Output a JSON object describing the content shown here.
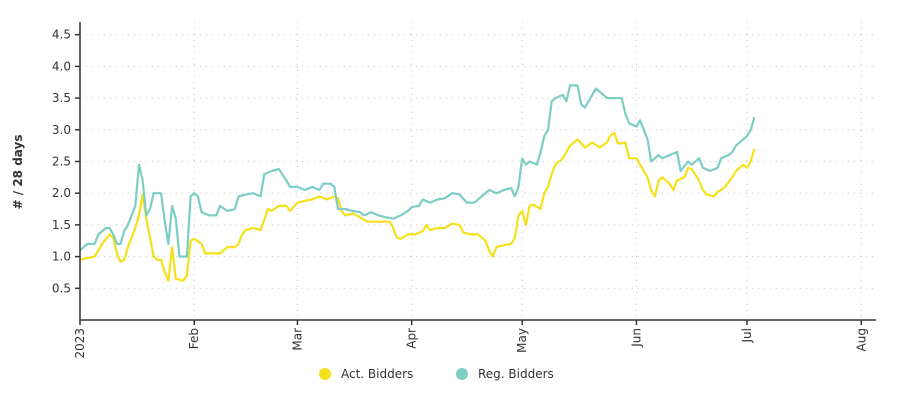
{
  "chart_data": {
    "type": "line",
    "title": "",
    "xlabel": "",
    "ylabel": "# / 28 days",
    "xlim": [
      "2023-01-01",
      "2023-08-05"
    ],
    "ylim": [
      0,
      4.7
    ],
    "y_ticks": [
      0.5,
      1.0,
      1.5,
      2.0,
      2.5,
      3.0,
      3.5,
      4.0,
      4.5
    ],
    "x_ticks": [
      {
        "date": "2023-01-01",
        "label": "2023"
      },
      {
        "date": "2023-02-01",
        "label": "Feb"
      },
      {
        "date": "2023-03-01",
        "label": "Mar"
      },
      {
        "date": "2023-04-01",
        "label": "Apr"
      },
      {
        "date": "2023-05-01",
        "label": "May"
      },
      {
        "date": "2023-06-01",
        "label": "Jun"
      },
      {
        "date": "2023-07-01",
        "label": "Jul"
      },
      {
        "date": "2023-08-01",
        "label": "Aug"
      }
    ],
    "grid": true,
    "legend_position": "bottom-center",
    "series": [
      {
        "name": "Act. Bidders",
        "color": "#f5e11b",
        "points": [
          [
            "2023-01-01",
            0.95
          ],
          [
            "2023-01-03",
            0.98
          ],
          [
            "2023-01-05",
            1.0
          ],
          [
            "2023-01-07",
            1.2
          ],
          [
            "2023-01-09",
            1.35
          ],
          [
            "2023-01-10",
            1.3
          ],
          [
            "2023-01-11",
            1.05
          ],
          [
            "2023-01-12",
            0.92
          ],
          [
            "2023-01-13",
            0.95
          ],
          [
            "2023-01-14",
            1.15
          ],
          [
            "2023-01-15",
            1.3
          ],
          [
            "2023-01-16",
            1.45
          ],
          [
            "2023-01-17",
            1.65
          ],
          [
            "2023-01-18",
            1.98
          ],
          [
            "2023-01-19",
            1.6
          ],
          [
            "2023-01-20",
            1.3
          ],
          [
            "2023-01-21",
            1.0
          ],
          [
            "2023-01-22",
            0.95
          ],
          [
            "2023-01-23",
            0.95
          ],
          [
            "2023-01-24",
            0.75
          ],
          [
            "2023-01-25",
            0.62
          ],
          [
            "2023-01-26",
            1.15
          ],
          [
            "2023-01-27",
            0.65
          ],
          [
            "2023-01-29",
            0.62
          ],
          [
            "2023-01-30",
            0.7
          ],
          [
            "2023-01-31",
            1.25
          ],
          [
            "2023-02-01",
            1.28
          ],
          [
            "2023-02-03",
            1.2
          ],
          [
            "2023-02-04",
            1.05
          ],
          [
            "2023-02-06",
            1.05
          ],
          [
            "2023-02-08",
            1.05
          ],
          [
            "2023-02-09",
            1.1
          ],
          [
            "2023-02-10",
            1.15
          ],
          [
            "2023-02-12",
            1.15
          ],
          [
            "2023-02-13",
            1.2
          ],
          [
            "2023-02-14",
            1.35
          ],
          [
            "2023-02-15",
            1.42
          ],
          [
            "2023-02-17",
            1.45
          ],
          [
            "2023-02-19",
            1.42
          ],
          [
            "2023-02-20",
            1.58
          ],
          [
            "2023-02-21",
            1.75
          ],
          [
            "2023-02-22",
            1.72
          ],
          [
            "2023-02-24",
            1.8
          ],
          [
            "2023-02-26",
            1.8
          ],
          [
            "2023-02-27",
            1.72
          ],
          [
            "2023-03-01",
            1.85
          ],
          [
            "2023-03-03",
            1.88
          ],
          [
            "2023-03-05",
            1.9
          ],
          [
            "2023-03-07",
            1.95
          ],
          [
            "2023-03-09",
            1.9
          ],
          [
            "2023-03-11",
            1.95
          ],
          [
            "2023-03-12",
            1.92
          ],
          [
            "2023-03-13",
            1.72
          ],
          [
            "2023-03-14",
            1.65
          ],
          [
            "2023-03-16",
            1.68
          ],
          [
            "2023-03-18",
            1.62
          ],
          [
            "2023-03-20",
            1.55
          ],
          [
            "2023-03-22",
            1.55
          ],
          [
            "2023-03-24",
            1.55
          ],
          [
            "2023-03-26",
            1.55
          ],
          [
            "2023-03-27",
            1.45
          ],
          [
            "2023-03-28",
            1.3
          ],
          [
            "2023-03-29",
            1.28
          ],
          [
            "2023-03-31",
            1.35
          ],
          [
            "2023-04-02",
            1.35
          ],
          [
            "2023-04-04",
            1.4
          ],
          [
            "2023-04-05",
            1.5
          ],
          [
            "2023-04-06",
            1.42
          ],
          [
            "2023-04-08",
            1.45
          ],
          [
            "2023-04-10",
            1.45
          ],
          [
            "2023-04-12",
            1.52
          ],
          [
            "2023-04-14",
            1.5
          ],
          [
            "2023-04-15",
            1.38
          ],
          [
            "2023-04-17",
            1.35
          ],
          [
            "2023-04-19",
            1.35
          ],
          [
            "2023-04-21",
            1.25
          ],
          [
            "2023-04-22",
            1.1
          ],
          [
            "2023-04-23",
            1.0
          ],
          [
            "2023-04-24",
            1.15
          ],
          [
            "2023-04-26",
            1.18
          ],
          [
            "2023-04-28",
            1.2
          ],
          [
            "2023-04-29",
            1.3
          ],
          [
            "2023-04-30",
            1.65
          ],
          [
            "2023-05-01",
            1.72
          ],
          [
            "2023-05-02",
            1.5
          ],
          [
            "2023-05-03",
            1.8
          ],
          [
            "2023-05-04",
            1.82
          ],
          [
            "2023-05-06",
            1.75
          ],
          [
            "2023-05-07",
            2.0
          ],
          [
            "2023-05-08",
            2.1
          ],
          [
            "2023-05-09",
            2.3
          ],
          [
            "2023-05-10",
            2.45
          ],
          [
            "2023-05-12",
            2.55
          ],
          [
            "2023-05-13",
            2.65
          ],
          [
            "2023-05-14",
            2.75
          ],
          [
            "2023-05-15",
            2.8
          ],
          [
            "2023-05-16",
            2.85
          ],
          [
            "2023-05-18",
            2.72
          ],
          [
            "2023-05-20",
            2.8
          ],
          [
            "2023-05-22",
            2.72
          ],
          [
            "2023-05-24",
            2.8
          ],
          [
            "2023-05-25",
            2.92
          ],
          [
            "2023-05-26",
            2.95
          ],
          [
            "2023-05-27",
            2.78
          ],
          [
            "2023-05-29",
            2.8
          ],
          [
            "2023-05-30",
            2.55
          ],
          [
            "2023-06-01",
            2.55
          ],
          [
            "2023-06-02",
            2.45
          ],
          [
            "2023-06-04",
            2.25
          ],
          [
            "2023-06-05",
            2.05
          ],
          [
            "2023-06-06",
            1.95
          ],
          [
            "2023-06-07",
            2.2
          ],
          [
            "2023-06-08",
            2.25
          ],
          [
            "2023-06-10",
            2.15
          ],
          [
            "2023-06-11",
            2.05
          ],
          [
            "2023-06-12",
            2.2
          ],
          [
            "2023-06-14",
            2.25
          ],
          [
            "2023-06-15",
            2.4
          ],
          [
            "2023-06-16",
            2.38
          ],
          [
            "2023-06-18",
            2.2
          ],
          [
            "2023-06-19",
            2.05
          ],
          [
            "2023-06-20",
            1.98
          ],
          [
            "2023-06-22",
            1.95
          ],
          [
            "2023-06-23",
            2.02
          ],
          [
            "2023-06-24",
            2.05
          ],
          [
            "2023-06-25",
            2.1
          ],
          [
            "2023-06-27",
            2.25
          ],
          [
            "2023-06-28",
            2.35
          ],
          [
            "2023-06-29",
            2.4
          ],
          [
            "2023-06-30",
            2.45
          ],
          [
            "2023-07-01",
            2.4
          ],
          [
            "2023-07-02",
            2.5
          ],
          [
            "2023-07-03",
            2.7
          ]
        ]
      },
      {
        "name": "Reg. Bidders",
        "color": "#7dcdc4",
        "points": [
          [
            "2023-01-01",
            1.1
          ],
          [
            "2023-01-03",
            1.2
          ],
          [
            "2023-01-05",
            1.2
          ],
          [
            "2023-01-06",
            1.35
          ],
          [
            "2023-01-08",
            1.45
          ],
          [
            "2023-01-09",
            1.45
          ],
          [
            "2023-01-10",
            1.35
          ],
          [
            "2023-01-11",
            1.2
          ],
          [
            "2023-01-12",
            1.2
          ],
          [
            "2023-01-13",
            1.4
          ],
          [
            "2023-01-14",
            1.5
          ],
          [
            "2023-01-16",
            1.8
          ],
          [
            "2023-01-17",
            2.45
          ],
          [
            "2023-01-18",
            2.2
          ],
          [
            "2023-01-19",
            1.65
          ],
          [
            "2023-01-20",
            1.75
          ],
          [
            "2023-01-21",
            2.0
          ],
          [
            "2023-01-23",
            2.0
          ],
          [
            "2023-01-24",
            1.55
          ],
          [
            "2023-01-25",
            1.2
          ],
          [
            "2023-01-26",
            1.8
          ],
          [
            "2023-01-27",
            1.6
          ],
          [
            "2023-01-28",
            1.0
          ],
          [
            "2023-01-30",
            1.0
          ],
          [
            "2023-01-31",
            1.95
          ],
          [
            "2023-02-01",
            2.0
          ],
          [
            "2023-02-02",
            1.95
          ],
          [
            "2023-02-03",
            1.7
          ],
          [
            "2023-02-05",
            1.65
          ],
          [
            "2023-02-07",
            1.65
          ],
          [
            "2023-02-08",
            1.8
          ],
          [
            "2023-02-10",
            1.72
          ],
          [
            "2023-02-12",
            1.75
          ],
          [
            "2023-02-13",
            1.95
          ],
          [
            "2023-02-15",
            1.98
          ],
          [
            "2023-02-17",
            2.0
          ],
          [
            "2023-02-19",
            1.95
          ],
          [
            "2023-02-20",
            2.3
          ],
          [
            "2023-02-22",
            2.35
          ],
          [
            "2023-02-24",
            2.38
          ],
          [
            "2023-02-26",
            2.2
          ],
          [
            "2023-02-27",
            2.1
          ],
          [
            "2023-03-01",
            2.1
          ],
          [
            "2023-03-03",
            2.05
          ],
          [
            "2023-03-05",
            2.1
          ],
          [
            "2023-03-07",
            2.05
          ],
          [
            "2023-03-08",
            2.15
          ],
          [
            "2023-03-10",
            2.15
          ],
          [
            "2023-03-11",
            2.1
          ],
          [
            "2023-03-12",
            1.75
          ],
          [
            "2023-03-14",
            1.75
          ],
          [
            "2023-03-16",
            1.72
          ],
          [
            "2023-03-18",
            1.7
          ],
          [
            "2023-03-19",
            1.65
          ],
          [
            "2023-03-21",
            1.7
          ],
          [
            "2023-03-23",
            1.65
          ],
          [
            "2023-03-25",
            1.62
          ],
          [
            "2023-03-27",
            1.6
          ],
          [
            "2023-03-29",
            1.65
          ],
          [
            "2023-03-31",
            1.72
          ],
          [
            "2023-04-01",
            1.78
          ],
          [
            "2023-04-03",
            1.8
          ],
          [
            "2023-04-04",
            1.9
          ],
          [
            "2023-04-06",
            1.85
          ],
          [
            "2023-04-08",
            1.9
          ],
          [
            "2023-04-10",
            1.92
          ],
          [
            "2023-04-12",
            2.0
          ],
          [
            "2023-04-14",
            1.98
          ],
          [
            "2023-04-16",
            1.85
          ],
          [
            "2023-04-18",
            1.85
          ],
          [
            "2023-04-20",
            1.95
          ],
          [
            "2023-04-22",
            2.05
          ],
          [
            "2023-04-24",
            2.0
          ],
          [
            "2023-04-26",
            2.05
          ],
          [
            "2023-04-28",
            2.08
          ],
          [
            "2023-04-29",
            1.95
          ],
          [
            "2023-04-30",
            2.1
          ],
          [
            "2023-05-01",
            2.55
          ],
          [
            "2023-05-02",
            2.45
          ],
          [
            "2023-05-03",
            2.5
          ],
          [
            "2023-05-05",
            2.45
          ],
          [
            "2023-05-06",
            2.65
          ],
          [
            "2023-05-07",
            2.9
          ],
          [
            "2023-05-08",
            3.0
          ],
          [
            "2023-05-09",
            3.45
          ],
          [
            "2023-05-10",
            3.5
          ],
          [
            "2023-05-12",
            3.55
          ],
          [
            "2023-05-13",
            3.45
          ],
          [
            "2023-05-14",
            3.7
          ],
          [
            "2023-05-16",
            3.7
          ],
          [
            "2023-05-17",
            3.4
          ],
          [
            "2023-05-18",
            3.35
          ],
          [
            "2023-05-19",
            3.45
          ],
          [
            "2023-05-21",
            3.65
          ],
          [
            "2023-05-22",
            3.6
          ],
          [
            "2023-05-24",
            3.5
          ],
          [
            "2023-05-26",
            3.5
          ],
          [
            "2023-05-28",
            3.5
          ],
          [
            "2023-05-29",
            3.25
          ],
          [
            "2023-05-30",
            3.1
          ],
          [
            "2023-06-01",
            3.05
          ],
          [
            "2023-06-02",
            3.15
          ],
          [
            "2023-06-04",
            2.85
          ],
          [
            "2023-06-05",
            2.5
          ],
          [
            "2023-06-07",
            2.6
          ],
          [
            "2023-06-08",
            2.55
          ],
          [
            "2023-06-10",
            2.6
          ],
          [
            "2023-06-12",
            2.65
          ],
          [
            "2023-06-13",
            2.35
          ],
          [
            "2023-06-15",
            2.5
          ],
          [
            "2023-06-16",
            2.45
          ],
          [
            "2023-06-18",
            2.55
          ],
          [
            "2023-06-19",
            2.4
          ],
          [
            "2023-06-21",
            2.35
          ],
          [
            "2023-06-23",
            2.4
          ],
          [
            "2023-06-24",
            2.55
          ],
          [
            "2023-06-26",
            2.6
          ],
          [
            "2023-06-27",
            2.65
          ],
          [
            "2023-06-28",
            2.75
          ],
          [
            "2023-06-30",
            2.85
          ],
          [
            "2023-07-01",
            2.9
          ],
          [
            "2023-07-02",
            3.0
          ],
          [
            "2023-07-03",
            3.2
          ]
        ]
      }
    ]
  }
}
